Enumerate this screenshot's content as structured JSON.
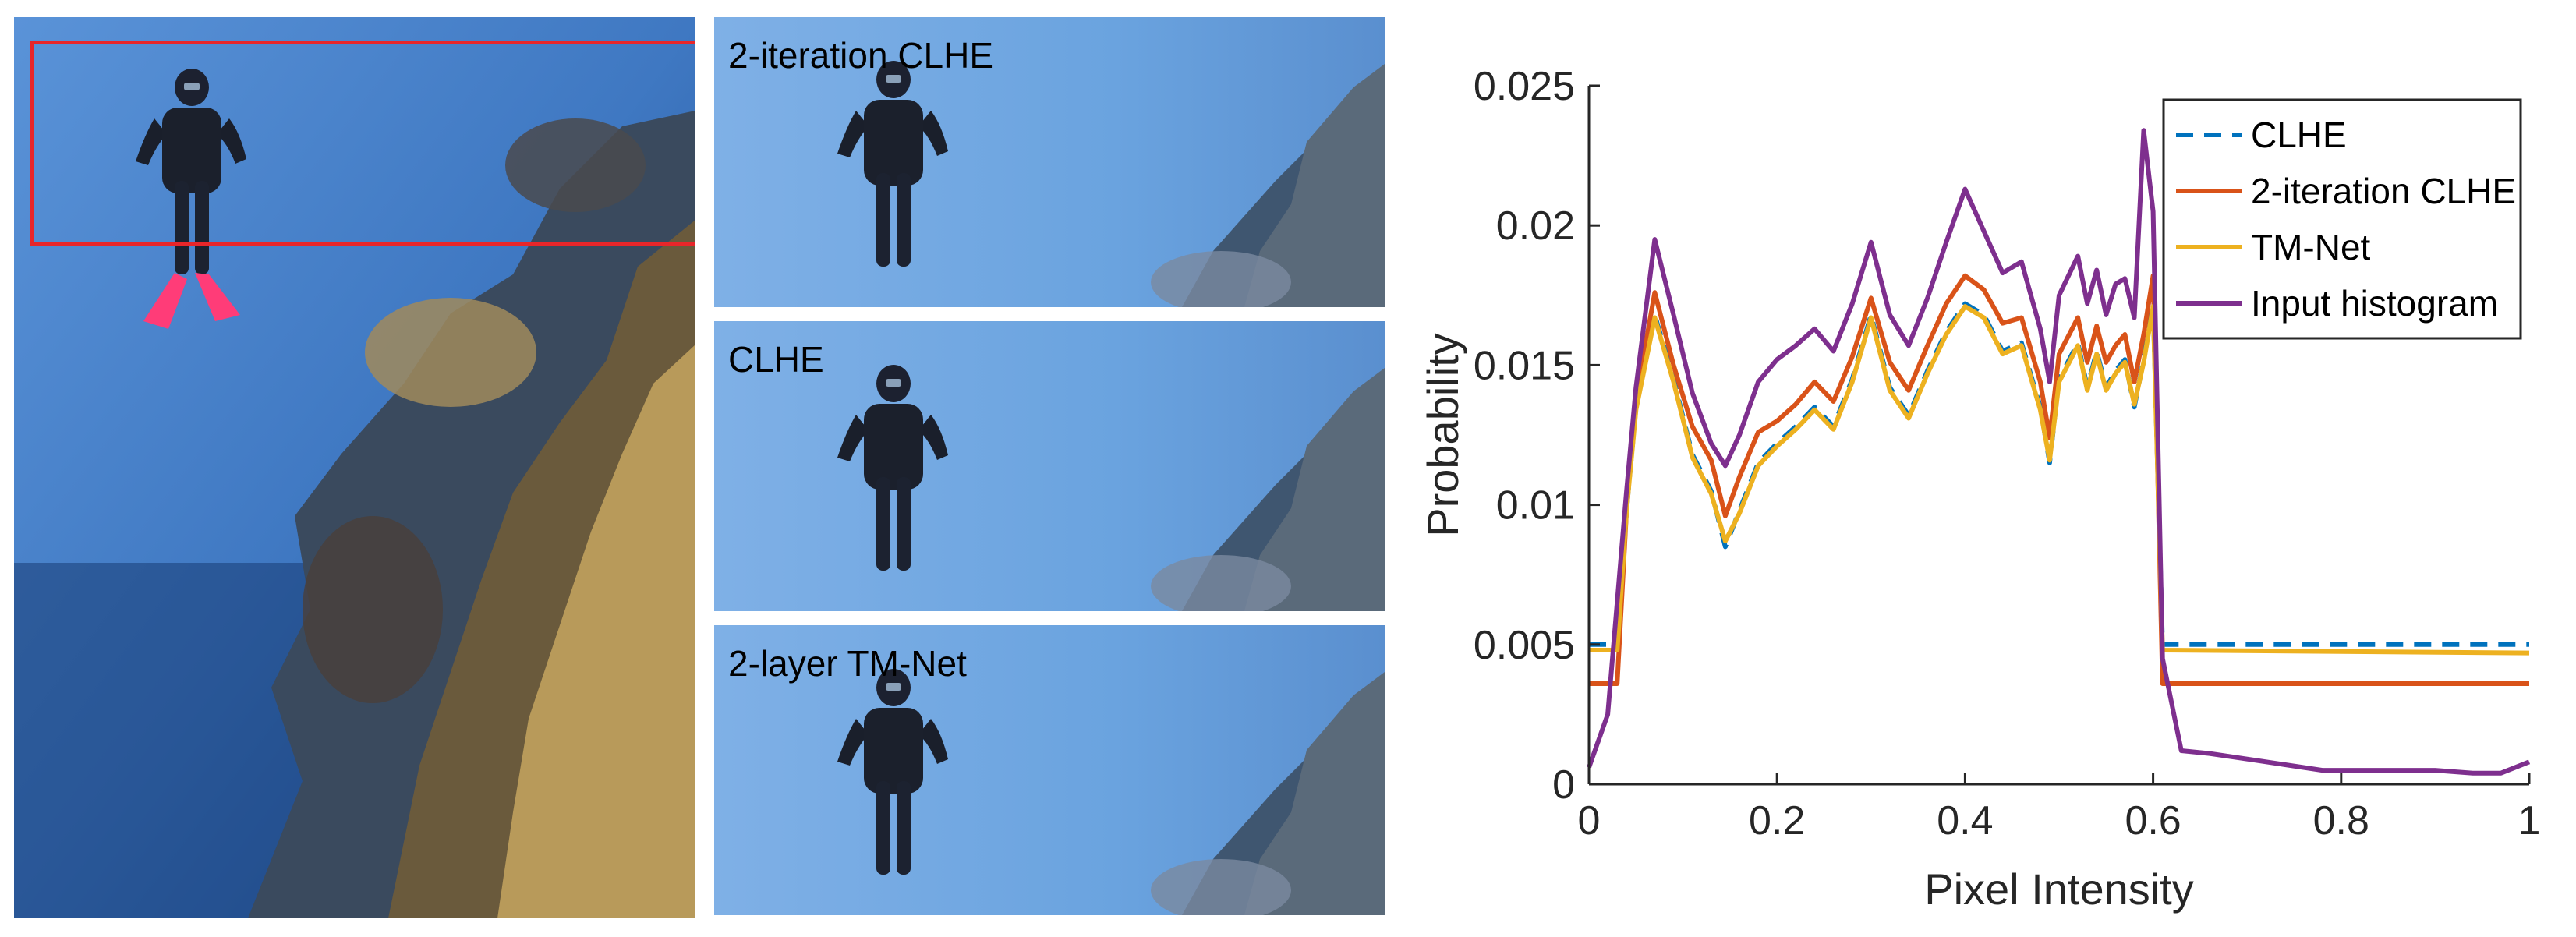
{
  "panels": {
    "crops": [
      {
        "label": "2-iteration CLHE"
      },
      {
        "label": "CLHE"
      },
      {
        "label": "2-layer TM-Net"
      }
    ]
  },
  "colors": {
    "water_deep": "#1f4f95",
    "water_light": "#4c8ad2",
    "roi_box": "#e8262a",
    "fins": "#ff3c78"
  },
  "chart_data": {
    "type": "line",
    "xlabel": "Pixel Intensity",
    "ylabel": "Probability",
    "xlim": [
      0,
      1
    ],
    "ylim": [
      0,
      0.025
    ],
    "xticks": [
      "0",
      "0.2",
      "0.4",
      "0.6",
      "0.8",
      "1"
    ],
    "yticks": [
      "0",
      "0.005",
      "0.01",
      "0.015",
      "0.02",
      "0.025"
    ],
    "legend_position": "top-right",
    "grid": false,
    "series": [
      {
        "name": "CLHE",
        "color": "#0072bd",
        "dash": "dashed",
        "points": [
          [
            0,
            0.005
          ],
          [
            0.03,
            0.005
          ],
          [
            0.04,
            0.0098
          ],
          [
            0.05,
            0.0135
          ],
          [
            0.07,
            0.0168
          ],
          [
            0.09,
            0.0145
          ],
          [
            0.11,
            0.0118
          ],
          [
            0.13,
            0.0105
          ],
          [
            0.145,
            0.0085
          ],
          [
            0.16,
            0.0098
          ],
          [
            0.18,
            0.0115
          ],
          [
            0.2,
            0.0122
          ],
          [
            0.22,
            0.0128
          ],
          [
            0.24,
            0.0135
          ],
          [
            0.26,
            0.0128
          ],
          [
            0.28,
            0.0145
          ],
          [
            0.3,
            0.0168
          ],
          [
            0.32,
            0.0142
          ],
          [
            0.34,
            0.0132
          ],
          [
            0.36,
            0.0148
          ],
          [
            0.38,
            0.0162
          ],
          [
            0.4,
            0.0172
          ],
          [
            0.42,
            0.0168
          ],
          [
            0.44,
            0.0155
          ],
          [
            0.46,
            0.0158
          ],
          [
            0.48,
            0.0135
          ],
          [
            0.49,
            0.0115
          ],
          [
            0.5,
            0.0145
          ],
          [
            0.52,
            0.0158
          ],
          [
            0.53,
            0.0142
          ],
          [
            0.54,
            0.0155
          ],
          [
            0.55,
            0.0142
          ],
          [
            0.56,
            0.0148
          ],
          [
            0.57,
            0.0152
          ],
          [
            0.58,
            0.0135
          ],
          [
            0.59,
            0.0152
          ],
          [
            0.6,
            0.0172
          ],
          [
            0.61,
            0.005
          ],
          [
            1,
            0.005
          ]
        ]
      },
      {
        "name": "2-iteration CLHE",
        "color": "#d95319",
        "dash": "solid",
        "points": [
          [
            0,
            0.0036
          ],
          [
            0.03,
            0.0036
          ],
          [
            0.04,
            0.0098
          ],
          [
            0.05,
            0.0138
          ],
          [
            0.07,
            0.0176
          ],
          [
            0.09,
            0.015
          ],
          [
            0.11,
            0.0128
          ],
          [
            0.13,
            0.0116
          ],
          [
            0.145,
            0.0096
          ],
          [
            0.16,
            0.011
          ],
          [
            0.18,
            0.0126
          ],
          [
            0.2,
            0.013
          ],
          [
            0.22,
            0.0136
          ],
          [
            0.24,
            0.0144
          ],
          [
            0.26,
            0.0137
          ],
          [
            0.28,
            0.0153
          ],
          [
            0.3,
            0.0174
          ],
          [
            0.32,
            0.0151
          ],
          [
            0.34,
            0.0141
          ],
          [
            0.36,
            0.0157
          ],
          [
            0.38,
            0.0172
          ],
          [
            0.4,
            0.0182
          ],
          [
            0.42,
            0.0177
          ],
          [
            0.44,
            0.0165
          ],
          [
            0.46,
            0.0167
          ],
          [
            0.48,
            0.0144
          ],
          [
            0.49,
            0.0124
          ],
          [
            0.5,
            0.0154
          ],
          [
            0.52,
            0.0167
          ],
          [
            0.53,
            0.0151
          ],
          [
            0.54,
            0.0164
          ],
          [
            0.55,
            0.0151
          ],
          [
            0.56,
            0.0157
          ],
          [
            0.57,
            0.0161
          ],
          [
            0.58,
            0.0144
          ],
          [
            0.59,
            0.0161
          ],
          [
            0.6,
            0.0182
          ],
          [
            0.61,
            0.0036
          ],
          [
            1,
            0.0036
          ]
        ]
      },
      {
        "name": "TM-Net",
        "color": "#edb120",
        "dash": "solid",
        "points": [
          [
            0,
            0.0048
          ],
          [
            0.03,
            0.0048
          ],
          [
            0.04,
            0.0098
          ],
          [
            0.05,
            0.0134
          ],
          [
            0.07,
            0.0167
          ],
          [
            0.09,
            0.0144
          ],
          [
            0.11,
            0.0117
          ],
          [
            0.13,
            0.0104
          ],
          [
            0.145,
            0.0087
          ],
          [
            0.16,
            0.0097
          ],
          [
            0.18,
            0.0114
          ],
          [
            0.2,
            0.0121
          ],
          [
            0.22,
            0.0127
          ],
          [
            0.24,
            0.0134
          ],
          [
            0.26,
            0.0127
          ],
          [
            0.28,
            0.0144
          ],
          [
            0.3,
            0.0167
          ],
          [
            0.32,
            0.0141
          ],
          [
            0.34,
            0.0131
          ],
          [
            0.36,
            0.0147
          ],
          [
            0.38,
            0.0161
          ],
          [
            0.4,
            0.0171
          ],
          [
            0.42,
            0.0167
          ],
          [
            0.44,
            0.0154
          ],
          [
            0.46,
            0.0157
          ],
          [
            0.48,
            0.0134
          ],
          [
            0.49,
            0.0116
          ],
          [
            0.5,
            0.0144
          ],
          [
            0.52,
            0.0157
          ],
          [
            0.53,
            0.0141
          ],
          [
            0.54,
            0.0154
          ],
          [
            0.55,
            0.0141
          ],
          [
            0.56,
            0.0147
          ],
          [
            0.57,
            0.0151
          ],
          [
            0.58,
            0.0136
          ],
          [
            0.59,
            0.0151
          ],
          [
            0.6,
            0.0171
          ],
          [
            0.61,
            0.0048
          ],
          [
            1,
            0.0047
          ]
        ]
      },
      {
        "name": "Input histogram",
        "color": "#7e2f8e",
        "dash": "solid",
        "points": [
          [
            0,
            0.0006
          ],
          [
            0.02,
            0.0025
          ],
          [
            0.04,
            0.0105
          ],
          [
            0.05,
            0.0142
          ],
          [
            0.07,
            0.0195
          ],
          [
            0.09,
            0.0168
          ],
          [
            0.11,
            0.014
          ],
          [
            0.13,
            0.0122
          ],
          [
            0.145,
            0.0114
          ],
          [
            0.16,
            0.0125
          ],
          [
            0.18,
            0.0144
          ],
          [
            0.2,
            0.0152
          ],
          [
            0.22,
            0.0157
          ],
          [
            0.24,
            0.0163
          ],
          [
            0.26,
            0.0155
          ],
          [
            0.28,
            0.0172
          ],
          [
            0.3,
            0.0194
          ],
          [
            0.32,
            0.0168
          ],
          [
            0.34,
            0.0157
          ],
          [
            0.36,
            0.0174
          ],
          [
            0.38,
            0.0194
          ],
          [
            0.4,
            0.0213
          ],
          [
            0.42,
            0.0198
          ],
          [
            0.44,
            0.0183
          ],
          [
            0.46,
            0.0187
          ],
          [
            0.48,
            0.0163
          ],
          [
            0.49,
            0.0144
          ],
          [
            0.5,
            0.0175
          ],
          [
            0.52,
            0.0189
          ],
          [
            0.53,
            0.0172
          ],
          [
            0.54,
            0.0184
          ],
          [
            0.55,
            0.0168
          ],
          [
            0.56,
            0.0179
          ],
          [
            0.57,
            0.0181
          ],
          [
            0.58,
            0.0167
          ],
          [
            0.59,
            0.0234
          ],
          [
            0.6,
            0.0205
          ],
          [
            0.61,
            0.0045
          ],
          [
            0.63,
            0.0012
          ],
          [
            0.66,
            0.0011
          ],
          [
            0.7,
            0.0009
          ],
          [
            0.74,
            0.0007
          ],
          [
            0.78,
            0.0005
          ],
          [
            0.82,
            0.0005
          ],
          [
            0.86,
            0.0005
          ],
          [
            0.9,
            0.0005
          ],
          [
            0.94,
            0.0004
          ],
          [
            0.97,
            0.0004
          ],
          [
            1,
            0.0008
          ]
        ]
      }
    ]
  }
}
